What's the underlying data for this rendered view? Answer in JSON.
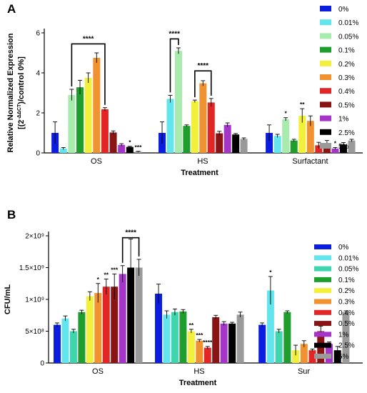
{
  "chart_data": [
    {
      "panel": "A",
      "type": "bar",
      "categories": [
        "OS",
        "HS",
        "Surfactant"
      ],
      "xlabel": "Treatment",
      "ylabel_line1": "Relative Normalized Expression",
      "ylabel_line2": "[(2",
      "ylabel_sup": "-ΔΔCT",
      "ylabel_line2b": ")/control 0%]",
      "ylim": [
        0,
        6
      ],
      "yticks": [
        "0",
        "2",
        "4",
        "6"
      ],
      "series": [
        {
          "name": "0%",
          "color": "#0b1ee0",
          "values": [
            1.0,
            1.0,
            1.0
          ],
          "errors": [
            0.55,
            0.55,
            0.4
          ]
        },
        {
          "name": "0.01%",
          "color": "#63e5ee",
          "values": [
            0.22,
            2.7,
            0.85
          ],
          "errors": [
            0.05,
            0.18,
            0.08
          ]
        },
        {
          "name": "0.05%",
          "color": "#a8ecad",
          "values": [
            2.9,
            5.1,
            1.68
          ],
          "errors": [
            0.28,
            0.15,
            0.08
          ]
        },
        {
          "name": "0.1%",
          "color": "#1e9e2c",
          "values": [
            3.28,
            1.35,
            0.62
          ],
          "errors": [
            0.35,
            0.05,
            0.06
          ]
        },
        {
          "name": "0.2%",
          "color": "#f2f03a",
          "values": [
            3.75,
            2.58,
            1.86
          ],
          "errors": [
            0.25,
            0.06,
            0.35
          ]
        },
        {
          "name": "0.3%",
          "color": "#f09230",
          "values": [
            4.75,
            3.48,
            1.6
          ],
          "errors": [
            0.25,
            0.13,
            0.25
          ]
        },
        {
          "name": "0.4%",
          "color": "#e22626",
          "values": [
            2.18,
            2.52,
            0.38
          ],
          "errors": [
            0.08,
            0.2,
            0.15
          ]
        },
        {
          "name": "0.5%",
          "color": "#8a1414",
          "values": [
            1.02,
            0.98,
            0.5
          ],
          "errors": [
            0.08,
            0.1,
            0.12
          ]
        },
        {
          "name": "1%",
          "color": "#a535c9",
          "values": [
            0.4,
            1.4,
            0.22
          ],
          "errors": [
            0.06,
            0.1,
            0.05
          ]
        },
        {
          "name": "2.5%",
          "color": "#000000",
          "values": [
            0.3,
            0.92,
            0.42
          ],
          "errors": [
            0.03,
            0.05,
            0.1
          ]
        },
        {
          "name": "5%",
          "color": "#9a9a9a",
          "values": [
            0.06,
            0.7,
            0.62
          ],
          "errors": [
            0.02,
            0.05,
            0.06
          ]
        }
      ],
      "significance": [
        {
          "group": 0,
          "series": 9,
          "text": "*"
        },
        {
          "group": 0,
          "series": 10,
          "text": "***"
        },
        {
          "group": 2,
          "series": 2,
          "text": "*"
        },
        {
          "group": 2,
          "series": 4,
          "text": "**"
        },
        {
          "group": 2,
          "series": 8,
          "text": "*"
        }
      ],
      "brackets": [
        {
          "group": 0,
          "from": 2,
          "to": 6,
          "y": 5.45,
          "text": "****"
        },
        {
          "group": 1,
          "from": 1,
          "to": 2,
          "y": 5.7,
          "text": "****"
        },
        {
          "group": 1,
          "from": 4,
          "to": 6,
          "y": 4.1,
          "text": "****"
        }
      ]
    },
    {
      "panel": "B",
      "type": "bar",
      "categories": [
        "OS",
        "HS",
        "Sur"
      ],
      "xlabel": "Treatment",
      "ylabel": "CFU/mL",
      "ylim": [
        0,
        2000000000
      ],
      "yticks": [
        {
          "value": 0,
          "label": "0"
        },
        {
          "value": 500000000,
          "label": "5×10⁸"
        },
        {
          "value": 1000000000,
          "label": "1×10⁹"
        },
        {
          "value": 1500000000,
          "label": "1.5×10⁹"
        },
        {
          "value": 2000000000,
          "label": "2×10⁹"
        }
      ],
      "series": [
        {
          "name": "0%",
          "color": "#0b1ee0",
          "values": [
            600000000,
            1090000000,
            600000000
          ],
          "errors": [
            30000000,
            150000000,
            30000000
          ]
        },
        {
          "name": "0.01%",
          "color": "#63e5ee",
          "values": [
            700000000,
            760000000,
            1140000000
          ],
          "errors": [
            40000000,
            60000000,
            220000000
          ]
        },
        {
          "name": "0.05%",
          "color": "#3fd6ae",
          "values": [
            500000000,
            800000000,
            500000000
          ],
          "errors": [
            30000000,
            50000000,
            30000000
          ]
        },
        {
          "name": "0.1%",
          "color": "#1e9e2c",
          "values": [
            800000000,
            810000000,
            800000000
          ],
          "errors": [
            30000000,
            30000000,
            20000000
          ]
        },
        {
          "name": "0.2%",
          "color": "#f2f03a",
          "values": [
            1050000000,
            500000000,
            200000000
          ],
          "errors": [
            70000000,
            30000000,
            80000000
          ]
        },
        {
          "name": "0.3%",
          "color": "#f09230",
          "values": [
            1100000000,
            350000000,
            300000000
          ],
          "errors": [
            150000000,
            20000000,
            50000000
          ]
        },
        {
          "name": "0.4%",
          "color": "#e22626",
          "values": [
            1200000000,
            240000000,
            200000000
          ],
          "errors": [
            120000000,
            20000000,
            20000000
          ]
        },
        {
          "name": "0.5%",
          "color": "#8a1414",
          "values": [
            1200000000,
            720000000,
            500000000
          ],
          "errors": [
            200000000,
            30000000,
            80000000
          ]
        },
        {
          "name": "1%",
          "color": "#a535c9",
          "values": [
            1400000000,
            620000000,
            300000000
          ],
          "errors": [
            130000000,
            30000000,
            30000000
          ]
        },
        {
          "name": "2.5%",
          "color": "#000000",
          "values": [
            1500000000,
            620000000,
            200000000
          ],
          "errors": [
            450000000,
            20000000,
            60000000
          ]
        },
        {
          "name": "5%",
          "color": "#9a9a9a",
          "values": [
            1500000000,
            760000000,
            800000000
          ],
          "errors": [
            130000000,
            40000000,
            20000000
          ]
        }
      ],
      "significance": [
        {
          "group": 0,
          "series": 5,
          "text": "*"
        },
        {
          "group": 0,
          "series": 6,
          "text": "**"
        },
        {
          "group": 0,
          "series": 7,
          "text": "***"
        },
        {
          "group": 1,
          "series": 4,
          "text": "**"
        },
        {
          "group": 1,
          "series": 5,
          "text": "***"
        },
        {
          "group": 1,
          "series": 6,
          "text": "****"
        },
        {
          "group": 2,
          "series": 1,
          "text": "*"
        }
      ],
      "brackets": [
        {
          "group": 0,
          "from": 8,
          "to": 10,
          "y": 1970000000,
          "text": "****"
        }
      ]
    }
  ]
}
